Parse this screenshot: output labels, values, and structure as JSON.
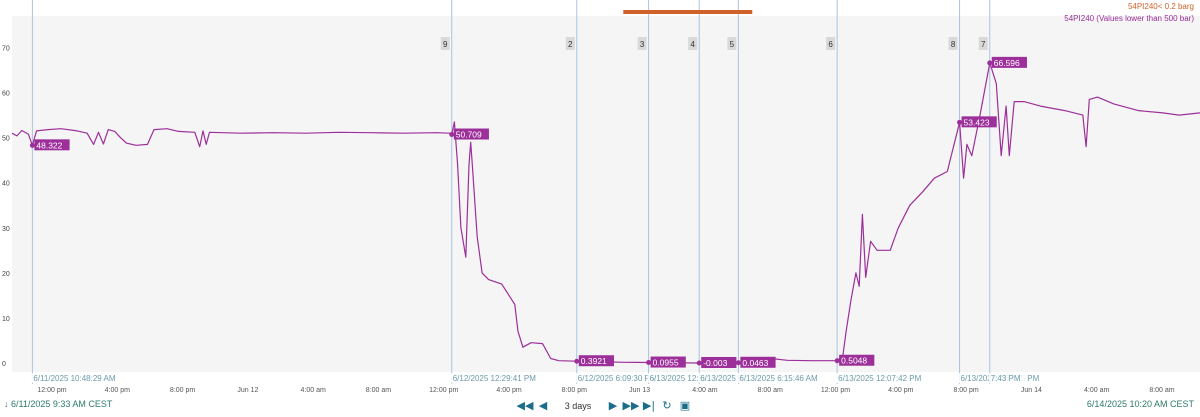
{
  "legend": [
    {
      "label": "54PI240< 0.2 barg",
      "color": "#d0612a"
    },
    {
      "label": "54PI240 (Values lower than 500 bar)",
      "color": "#9c2f9a"
    }
  ],
  "footer": {
    "start_time": "6/11/2025 9:33 AM  CEST",
    "end_time": "6/14/2025 10:20 AM  CEST",
    "time_span": "3 days"
  },
  "nav_icons": [
    "rewind-icon",
    "step-back-icon",
    "step-forward-icon",
    "fast-forward-icon",
    "skip-to-end-icon",
    "refresh-icon",
    "zoom-fit-icon"
  ],
  "chart_data": {
    "type": "line",
    "x_unit": "hours since 6/11/2025 9:33 AM",
    "ylim": [
      -2,
      77
    ],
    "xlim": [
      0,
      72.78
    ],
    "yticks": [
      0,
      10,
      20,
      30,
      40,
      50,
      60,
      70
    ],
    "xticks": [
      {
        "x": 2.45,
        "label": "12:00 pm"
      },
      {
        "x": 6.45,
        "label": "4:00 pm"
      },
      {
        "x": 10.45,
        "label": "8:00 pm"
      },
      {
        "x": 14.45,
        "label": "Jun 12"
      },
      {
        "x": 18.45,
        "label": "4:00 am"
      },
      {
        "x": 22.45,
        "label": "8:00 am"
      },
      {
        "x": 26.45,
        "label": "12:00 pm"
      },
      {
        "x": 30.45,
        "label": "4:00 pm"
      },
      {
        "x": 34.45,
        "label": "8:00 pm"
      },
      {
        "x": 38.45,
        "label": "Jun 13"
      },
      {
        "x": 42.45,
        "label": "4:00 am"
      },
      {
        "x": 46.45,
        "label": "8:00 am"
      },
      {
        "x": 50.45,
        "label": "12:00 pm"
      },
      {
        "x": 54.45,
        "label": "4:00 pm"
      },
      {
        "x": 58.45,
        "label": "8:00 pm"
      },
      {
        "x": 62.45,
        "label": "Jun 14"
      },
      {
        "x": 66.45,
        "label": "4:00 am"
      },
      {
        "x": 70.45,
        "label": "8:00 am"
      }
    ],
    "events": [
      {
        "num": "",
        "x": 1.25,
        "time_label": "6/11/2025 10:48:29 AM"
      },
      {
        "num": "9",
        "x": 26.94,
        "time_label": "6/12/2025 12:29:41 PM"
      },
      {
        "num": "2",
        "x": 34.6,
        "time_label": "6/12/2025 6:09:30 PM"
      },
      {
        "num": "3",
        "x": 39.0,
        "time_label": "6/13/2025 12:36"
      },
      {
        "num": "4",
        "x": 42.1,
        "time_label": "6/13/2025 3"
      },
      {
        "num": "5",
        "x": 44.5,
        "time_label": "6/13/2025 6:15:46 AM"
      },
      {
        "num": "6",
        "x": 50.55,
        "time_label": "6/13/2025 12:07:42 PM"
      },
      {
        "num": "8",
        "x": 58.05,
        "time_label": "6/13/2025 7:37:15 PM"
      },
      {
        "num": "7",
        "x": 59.9,
        "time_label": "7:43 PM"
      }
    ],
    "highlight_bar": {
      "x_start": 37.45,
      "x_end": 45.35,
      "color": "#d0612a"
    },
    "series": [
      {
        "name": "54PI240 (Values lower than 500 bar)",
        "color": "#9c2f9a",
        "points": [
          [
            0,
            51
          ],
          [
            0.3,
            50.4
          ],
          [
            0.6,
            51.6
          ],
          [
            1.0,
            50.8
          ],
          [
            1.25,
            48.3
          ],
          [
            1.5,
            51.5
          ],
          [
            2.2,
            51.8
          ],
          [
            3.0,
            52.0
          ],
          [
            4.0,
            51.5
          ],
          [
            4.6,
            51.0
          ],
          [
            5.0,
            48.5
          ],
          [
            5.3,
            51.2
          ],
          [
            5.6,
            48.6
          ],
          [
            5.9,
            51.8
          ],
          [
            6.3,
            51.4
          ],
          [
            6.6,
            50.2
          ],
          [
            7.0,
            48.8
          ],
          [
            7.6,
            48.3
          ],
          [
            8.3,
            48.5
          ],
          [
            8.7,
            51.8
          ],
          [
            9.5,
            52.0
          ],
          [
            10.2,
            51.4
          ],
          [
            11.2,
            51.2
          ],
          [
            11.5,
            48.0
          ],
          [
            11.7,
            51.5
          ],
          [
            11.9,
            48.5
          ],
          [
            12.1,
            51.2
          ],
          [
            14.0,
            51.0
          ],
          [
            16.0,
            51.1
          ],
          [
            18.0,
            51.0
          ],
          [
            20.0,
            51.2
          ],
          [
            22.0,
            51.1
          ],
          [
            24.0,
            51.0
          ],
          [
            26.0,
            51.1
          ],
          [
            26.8,
            51.0
          ],
          [
            26.94,
            50.7
          ],
          [
            27.1,
            53.5
          ],
          [
            27.3,
            44.0
          ],
          [
            27.5,
            30.0
          ],
          [
            27.8,
            23.5
          ],
          [
            28.0,
            44.0
          ],
          [
            28.1,
            49.0
          ],
          [
            28.2,
            44.0
          ],
          [
            28.5,
            28.0
          ],
          [
            28.8,
            20.0
          ],
          [
            29.2,
            18.5
          ],
          [
            30.0,
            17.5
          ],
          [
            30.8,
            13.0
          ],
          [
            31.0,
            7.0
          ],
          [
            31.3,
            3.5
          ],
          [
            31.8,
            4.5
          ],
          [
            32.5,
            4.3
          ],
          [
            33.0,
            1.0
          ],
          [
            33.5,
            0.5
          ],
          [
            34.6,
            0.39
          ],
          [
            36.0,
            0.3
          ],
          [
            37.5,
            0.15
          ],
          [
            39.0,
            0.1
          ],
          [
            40.5,
            0.05
          ],
          [
            42.1,
            0.0
          ],
          [
            43.3,
            0.05
          ],
          [
            44.5,
            0.05
          ],
          [
            45.5,
            0.5
          ],
          [
            46.5,
            1.0
          ],
          [
            47.5,
            0.6
          ],
          [
            49.0,
            0.5
          ],
          [
            50.55,
            0.5
          ],
          [
            50.9,
            1.5
          ],
          [
            51.1,
            7.0
          ],
          [
            51.4,
            14.0
          ],
          [
            51.7,
            20.0
          ],
          [
            51.9,
            17.0
          ],
          [
            52.1,
            33.0
          ],
          [
            52.3,
            19.0
          ],
          [
            52.6,
            27.0
          ],
          [
            53.0,
            25.0
          ],
          [
            53.8,
            25.0
          ],
          [
            54.3,
            30.0
          ],
          [
            55.0,
            35.0
          ],
          [
            55.8,
            38.0
          ],
          [
            56.5,
            41.0
          ],
          [
            57.3,
            42.5
          ],
          [
            58.05,
            53.4
          ],
          [
            58.3,
            41.0
          ],
          [
            58.5,
            48.5
          ],
          [
            58.8,
            46.0
          ],
          [
            59.3,
            55.0
          ],
          [
            59.9,
            66.6
          ],
          [
            60.3,
            62.0
          ],
          [
            60.6,
            46.0
          ],
          [
            60.9,
            57.0
          ],
          [
            61.1,
            46.0
          ],
          [
            61.4,
            58.0
          ],
          [
            62.0,
            58.0
          ],
          [
            63.0,
            57.0
          ],
          [
            64.5,
            56.0
          ],
          [
            65.6,
            55.0
          ],
          [
            65.8,
            48.0
          ],
          [
            66.0,
            58.5
          ],
          [
            66.5,
            59.0
          ],
          [
            67.5,
            57.5
          ],
          [
            69.0,
            56.0
          ],
          [
            70.5,
            55.5
          ],
          [
            71.5,
            55.0
          ],
          [
            72.78,
            55.5
          ]
        ]
      }
    ],
    "labels": [
      {
        "x": 1.25,
        "y": 48.3,
        "text": "48.322"
      },
      {
        "x": 26.94,
        "y": 50.7,
        "text": "50.709"
      },
      {
        "x": 34.6,
        "y": 0.39,
        "text": "0.3921"
      },
      {
        "x": 39.0,
        "y": 0.1,
        "text": "0.0955"
      },
      {
        "x": 42.1,
        "y": 0.0,
        "text": "-0.003"
      },
      {
        "x": 44.5,
        "y": 0.05,
        "text": "0.0463"
      },
      {
        "x": 50.55,
        "y": 0.5,
        "text": "0.5048"
      },
      {
        "x": 58.05,
        "y": 53.4,
        "text": "53.423"
      },
      {
        "x": 59.9,
        "y": 66.6,
        "text": "66.596"
      }
    ]
  }
}
